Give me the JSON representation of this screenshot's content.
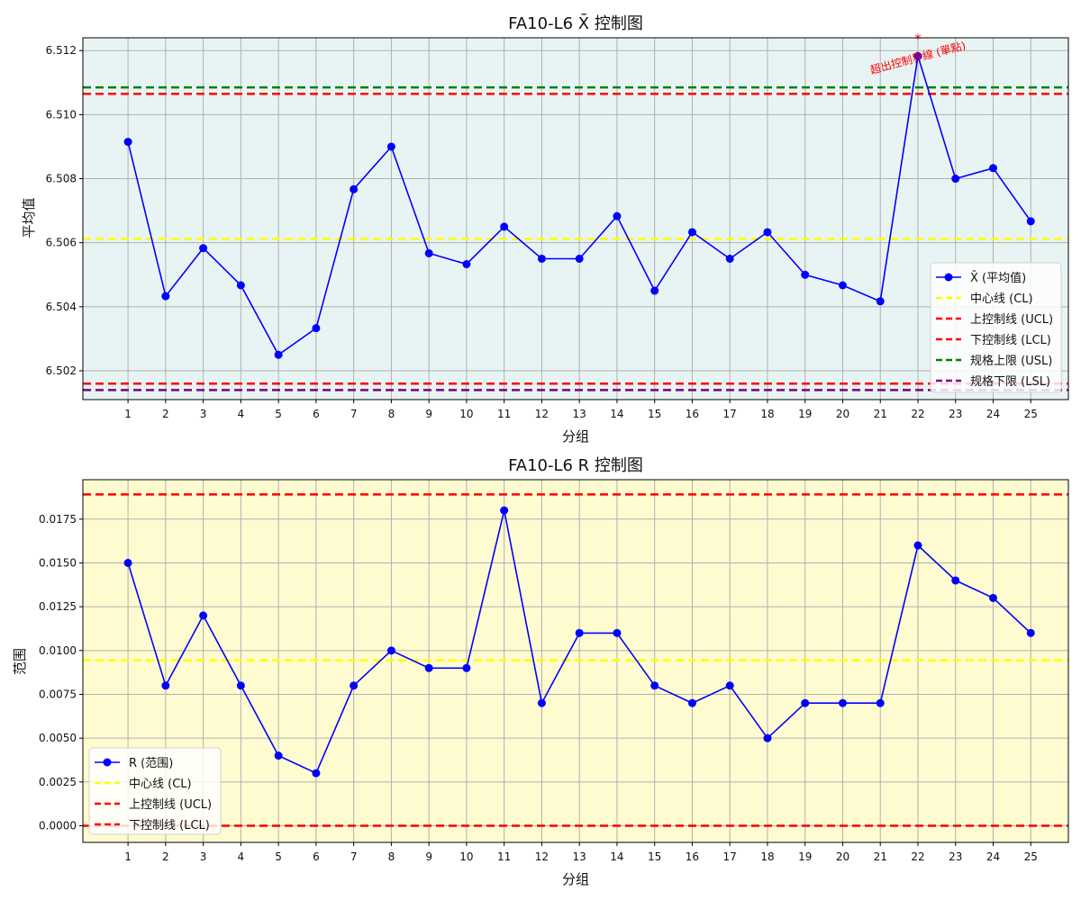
{
  "chart_data": [
    {
      "type": "line",
      "title": "FA10-L6 X̄ 控制图",
      "xlabel": "分组",
      "ylabel": "平均值",
      "categories": [
        "1",
        "2",
        "3",
        "4",
        "5",
        "6",
        "7",
        "8",
        "9",
        "10",
        "11",
        "12",
        "13",
        "14",
        "15",
        "16",
        "17",
        "18",
        "19",
        "20",
        "21",
        "22",
        "23",
        "24",
        "25"
      ],
      "series": [
        {
          "name": "X̄ (平均值)",
          "color": "#0000ff",
          "values": [
            6.50915,
            6.50433,
            6.50583,
            6.50467,
            6.5025,
            6.50333,
            6.50767,
            6.509,
            6.50567,
            6.50533,
            6.5065,
            6.5055,
            6.5055,
            6.50683,
            6.5045,
            6.50633,
            6.5055,
            6.50633,
            6.505,
            6.50467,
            6.50417,
            6.51183,
            6.508,
            6.50833,
            6.50667
          ]
        }
      ],
      "reference_lines": [
        {
          "name": "中心线 (CL)",
          "value": 6.50612,
          "color": "#ffff00"
        },
        {
          "name": "上控制线 (UCL)",
          "value": 6.51065,
          "color": "#ff0000"
        },
        {
          "name": "下控制线 (LCL)",
          "value": 6.5016,
          "color": "#ff0000"
        },
        {
          "name": "规格上限 (USL)",
          "value": 6.51085,
          "color": "#008000"
        },
        {
          "name": "规格下限 (LSL)",
          "value": 6.5014,
          "color": "#800080"
        }
      ],
      "ylim": [
        6.5011,
        6.5124
      ],
      "yticks": [
        "6.502",
        "6.504",
        "6.506",
        "6.508",
        "6.510",
        "6.512"
      ],
      "xlim": [
        -0.2,
        26.0
      ],
      "background": "#e8f4f4",
      "grid": true,
      "legend_position": "lower-right",
      "annotations": [
        {
          "text": "超出控制界線 (單點)",
          "x": 22,
          "color": "#ff0000"
        },
        {
          "text": "*",
          "x": 22,
          "color": "#ff0000"
        }
      ]
    },
    {
      "type": "line",
      "title": "FA10-L6 R 控制图",
      "xlabel": "分组",
      "ylabel": "范围",
      "categories": [
        "1",
        "2",
        "3",
        "4",
        "5",
        "6",
        "7",
        "8",
        "9",
        "10",
        "11",
        "12",
        "13",
        "14",
        "15",
        "16",
        "17",
        "18",
        "19",
        "20",
        "21",
        "22",
        "23",
        "24",
        "25"
      ],
      "series": [
        {
          "name": "R (范围)",
          "color": "#0000ff",
          "values": [
            0.015,
            0.008,
            0.012,
            0.008,
            0.004,
            0.003,
            0.008,
            0.01,
            0.009,
            0.009,
            0.018,
            0.007,
            0.011,
            0.011,
            0.008,
            0.007,
            0.008,
            0.005,
            0.007,
            0.007,
            0.007,
            0.016,
            0.014,
            0.013,
            0.011
          ]
        }
      ],
      "reference_lines": [
        {
          "name": "中心线 (CL)",
          "value": 0.00944,
          "color": "#ffff00"
        },
        {
          "name": "上控制线 (UCL)",
          "value": 0.01891,
          "color": "#ff0000"
        },
        {
          "name": "下控制线 (LCL)",
          "value": 0.0,
          "color": "#ff0000"
        }
      ],
      "ylim": [
        -0.00095,
        0.01975
      ],
      "yticks": [
        "0.0000",
        "0.0025",
        "0.0050",
        "0.0075",
        "0.0100",
        "0.0125",
        "0.0150",
        "0.0175"
      ],
      "xlim": [
        -0.2,
        26.0
      ],
      "background": "#fffbd0",
      "grid": true,
      "legend_position": "lower-left"
    }
  ]
}
